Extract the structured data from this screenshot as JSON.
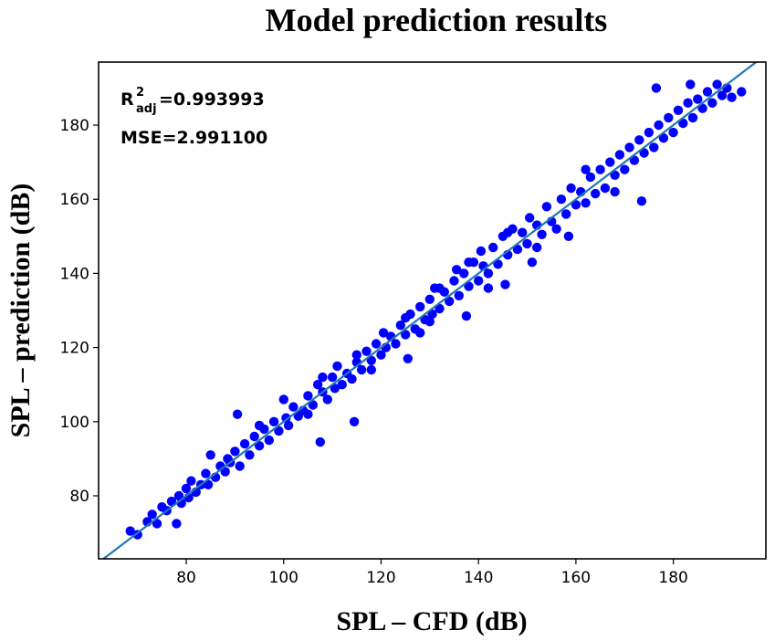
{
  "chart_data": {
    "type": "scatter",
    "title": "Model prediction results",
    "xlabel": "SPL – CFD (dB)",
    "ylabel": "SPL – prediction (dB)",
    "xlim": [
      62,
      199
    ],
    "ylim": [
      63,
      197
    ],
    "x_ticks": [
      80,
      100,
      120,
      140,
      160,
      180
    ],
    "y_ticks": [
      80,
      100,
      120,
      140,
      160,
      180
    ],
    "grid": false,
    "marker_color": "#0000ff",
    "line_color": "#1f77b4",
    "reference_line": {
      "x": [
        62,
        199
      ],
      "y": [
        62,
        199
      ]
    },
    "annotations": {
      "r2_label": "R",
      "r2_sup": "2",
      "r2_sub": "adj",
      "r2_value": "=0.993993",
      "mse": "MSE=2.991100"
    },
    "series": [
      {
        "points": [
          [
            68.5,
            70.5
          ],
          [
            70,
            69.5
          ],
          [
            72,
            73
          ],
          [
            73,
            75
          ],
          [
            74,
            72.5
          ],
          [
            75,
            77
          ],
          [
            76,
            76
          ],
          [
            77,
            78.5
          ],
          [
            78,
            72.5
          ],
          [
            78.5,
            80
          ],
          [
            79,
            78
          ],
          [
            80,
            82
          ],
          [
            80.5,
            79.5
          ],
          [
            81,
            84
          ],
          [
            82,
            81
          ],
          [
            83,
            83
          ],
          [
            84,
            86
          ],
          [
            84.5,
            83
          ],
          [
            85,
            91
          ],
          [
            86,
            85
          ],
          [
            87,
            88
          ],
          [
            88,
            86.5
          ],
          [
            88.5,
            90
          ],
          [
            89,
            89
          ],
          [
            90,
            92
          ],
          [
            90.5,
            102
          ],
          [
            91,
            88
          ],
          [
            92,
            94
          ],
          [
            93,
            91
          ],
          [
            94,
            96
          ],
          [
            95,
            93.5
          ],
          [
            96,
            98
          ],
          [
            97,
            95
          ],
          [
            98,
            100
          ],
          [
            99,
            97.5
          ],
          [
            100,
            106
          ],
          [
            100.5,
            101
          ],
          [
            101,
            99
          ],
          [
            102,
            104
          ],
          [
            103,
            101.5
          ],
          [
            104,
            103
          ],
          [
            105,
            107
          ],
          [
            106,
            104.5
          ],
          [
            107,
            110
          ],
          [
            107.5,
            94.5
          ],
          [
            108,
            108
          ],
          [
            109,
            106
          ],
          [
            110,
            112
          ],
          [
            110.5,
            109
          ],
          [
            111,
            115
          ],
          [
            112,
            110
          ],
          [
            113,
            113
          ],
          [
            114,
            111.5
          ],
          [
            114.5,
            100
          ],
          [
            115,
            116
          ],
          [
            116,
            114
          ],
          [
            117,
            119
          ],
          [
            118,
            116.5
          ],
          [
            119,
            121
          ],
          [
            120,
            118
          ],
          [
            120.5,
            124
          ],
          [
            121,
            120
          ],
          [
            122,
            123
          ],
          [
            123,
            121
          ],
          [
            124,
            126
          ],
          [
            125,
            123.5
          ],
          [
            125.5,
            117
          ],
          [
            126,
            129
          ],
          [
            127,
            125
          ],
          [
            128,
            131
          ],
          [
            129,
            127.5
          ],
          [
            130,
            133
          ],
          [
            130.5,
            129
          ],
          [
            131,
            136
          ],
          [
            132,
            130.5
          ],
          [
            133,
            135
          ],
          [
            134,
            132.5
          ],
          [
            135,
            138
          ],
          [
            135.5,
            141
          ],
          [
            136,
            134
          ],
          [
            137,
            140
          ],
          [
            137.5,
            128.5
          ],
          [
            138,
            136.5
          ],
          [
            139,
            143
          ],
          [
            140,
            138
          ],
          [
            140.5,
            146
          ],
          [
            141,
            142
          ],
          [
            142,
            140
          ],
          [
            143,
            147
          ],
          [
            144,
            142.5
          ],
          [
            145,
            150
          ],
          [
            145.5,
            137
          ],
          [
            146,
            145
          ],
          [
            147,
            152
          ],
          [
            148,
            146.5
          ],
          [
            149,
            151
          ],
          [
            150,
            148
          ],
          [
            150.5,
            155
          ],
          [
            151,
            143
          ],
          [
            152,
            153
          ],
          [
            153,
            150.5
          ],
          [
            154,
            158
          ],
          [
            155,
            154
          ],
          [
            156,
            152
          ],
          [
            157,
            160
          ],
          [
            158,
            156
          ],
          [
            158.5,
            150
          ],
          [
            159,
            163
          ],
          [
            160,
            158.5
          ],
          [
            161,
            162
          ],
          [
            162,
            159
          ],
          [
            163,
            166
          ],
          [
            164,
            161.5
          ],
          [
            165,
            168
          ],
          [
            166,
            163
          ],
          [
            167,
            170
          ],
          [
            168,
            166.5
          ],
          [
            169,
            172
          ],
          [
            170,
            168
          ],
          [
            171,
            174
          ],
          [
            172,
            170.5
          ],
          [
            173,
            176
          ],
          [
            173.5,
            159.5
          ],
          [
            174,
            172.5
          ],
          [
            175,
            178
          ],
          [
            176,
            174
          ],
          [
            176.5,
            190
          ],
          [
            177,
            180
          ],
          [
            178,
            176.5
          ],
          [
            179,
            182
          ],
          [
            180,
            178
          ],
          [
            181,
            184
          ],
          [
            182,
            180.5
          ],
          [
            183,
            186
          ],
          [
            183.5,
            191
          ],
          [
            184,
            182
          ],
          [
            185,
            187
          ],
          [
            186,
            184.5
          ],
          [
            187,
            189
          ],
          [
            188,
            186
          ],
          [
            189,
            191
          ],
          [
            190,
            188
          ],
          [
            191,
            190
          ],
          [
            192,
            187.5
          ],
          [
            194,
            189
          ],
          [
            130,
            127
          ],
          [
            125,
            128
          ],
          [
            115,
            118
          ],
          [
            105,
            102
          ],
          [
            95,
            99
          ],
          [
            146,
            151
          ],
          [
            152,
            147
          ],
          [
            162,
            168
          ],
          [
            168,
            162
          ],
          [
            138,
            143
          ],
          [
            142,
            136
          ],
          [
            132,
            136
          ],
          [
            128,
            124
          ],
          [
            118,
            114
          ],
          [
            108,
            112
          ]
        ]
      }
    ]
  }
}
